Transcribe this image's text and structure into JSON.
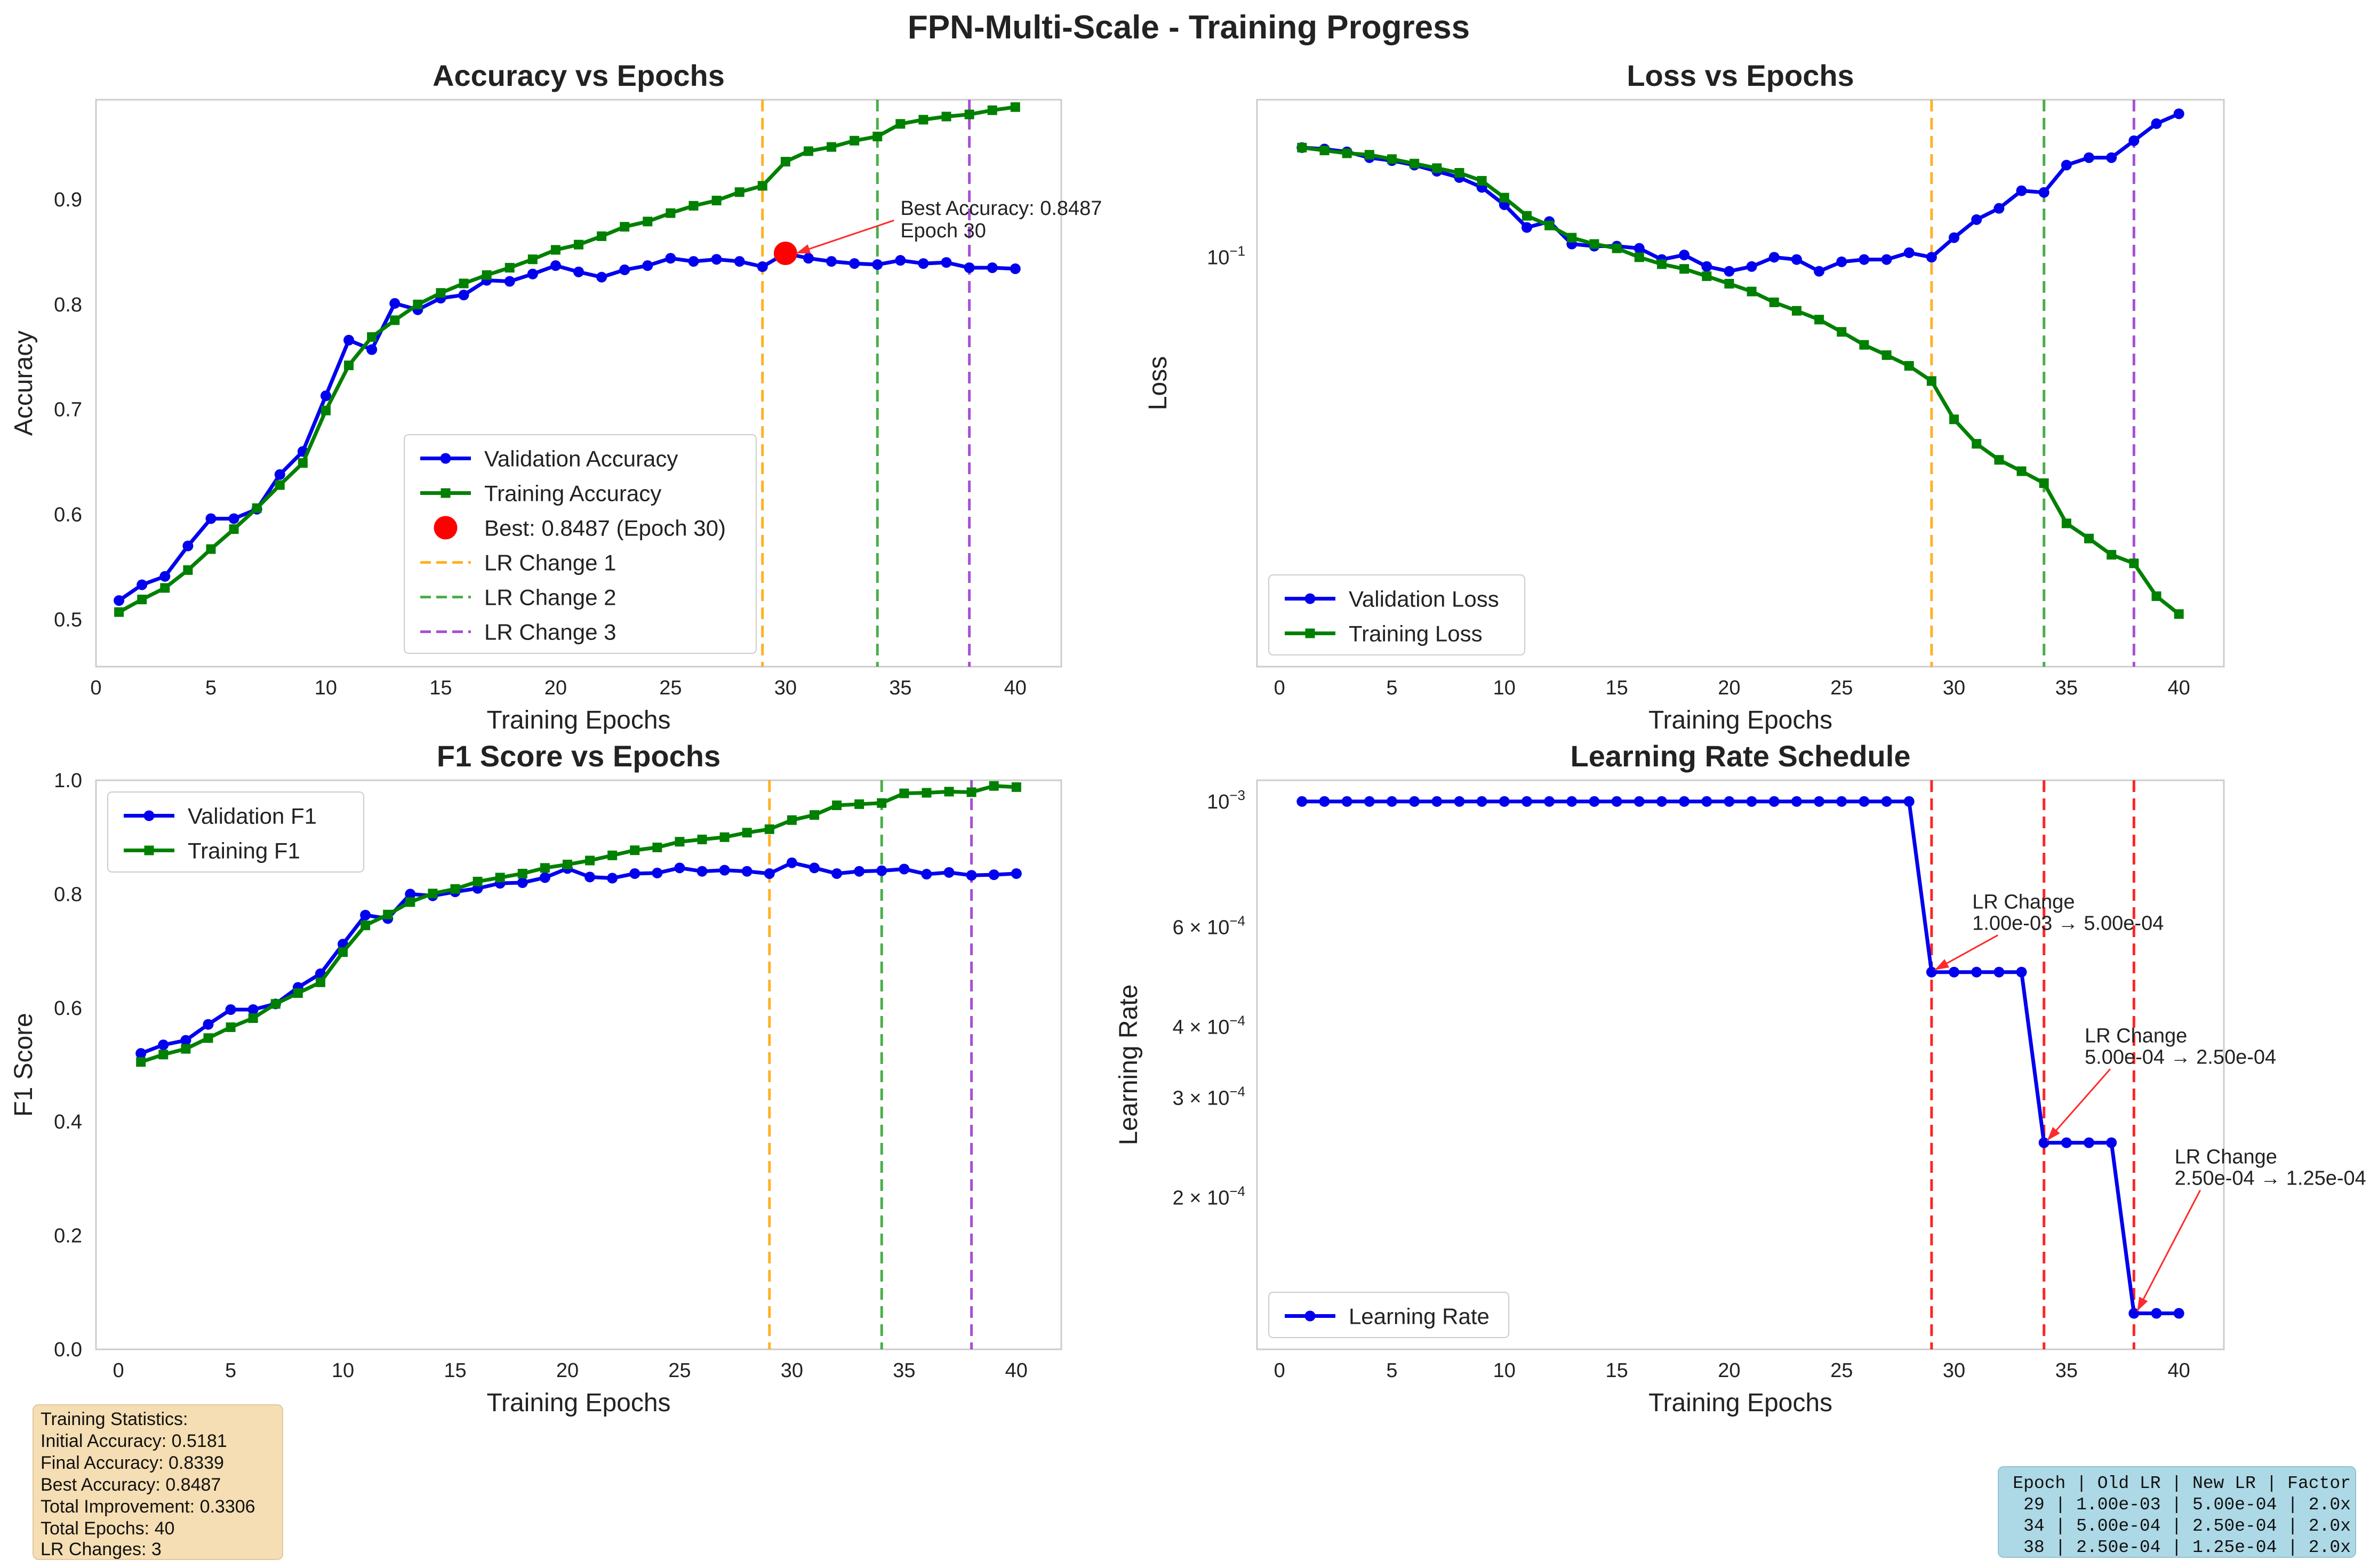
{
  "figure": {
    "title": "FPN-Multi-Scale - Training Progress",
    "colors": {
      "validation": "#0000ee",
      "training": "#008000",
      "best": "#ff0000",
      "lr_change_1": "#ffa500",
      "lr_change_2": "#2ca02c",
      "lr_change_3": "#9932cc",
      "lr_line": "#ff0000"
    }
  },
  "chart_data": [
    {
      "id": "accuracy",
      "type": "line",
      "title": "Accuracy vs Epochs",
      "xlabel": "Training Epochs",
      "ylabel": "Accuracy",
      "xlim": [
        0,
        42
      ],
      "ylim": [
        0.455,
        0.995
      ],
      "xticks": [
        0,
        5,
        10,
        15,
        20,
        25,
        30,
        35,
        40
      ],
      "yticks": [
        0.5,
        0.6,
        0.7,
        0.8,
        0.9
      ],
      "grid": true,
      "legend_position": "lower-center",
      "x": [
        1,
        2,
        3,
        4,
        5,
        6,
        7,
        8,
        9,
        10,
        11,
        12,
        13,
        14,
        15,
        16,
        17,
        18,
        19,
        20,
        21,
        22,
        23,
        24,
        25,
        26,
        27,
        28,
        29,
        30,
        31,
        32,
        33,
        34,
        35,
        36,
        37,
        38,
        39,
        40
      ],
      "series": [
        {
          "name": "Validation Accuracy",
          "marker": "circle",
          "color": "#0000ee",
          "values": [
            0.518,
            0.533,
            0.541,
            0.57,
            0.596,
            0.596,
            0.605,
            0.638,
            0.66,
            0.713,
            0.766,
            0.757,
            0.801,
            0.795,
            0.806,
            0.809,
            0.823,
            0.822,
            0.829,
            0.837,
            0.831,
            0.826,
            0.833,
            0.837,
            0.844,
            0.841,
            0.843,
            0.841,
            0.836,
            0.8487,
            0.844,
            0.841,
            0.839,
            0.838,
            0.842,
            0.839,
            0.84,
            0.835,
            0.835,
            0.834
          ]
        },
        {
          "name": "Training Accuracy",
          "marker": "square",
          "color": "#008000",
          "values": [
            0.507,
            0.519,
            0.53,
            0.547,
            0.567,
            0.586,
            0.606,
            0.628,
            0.649,
            0.699,
            0.742,
            0.769,
            0.785,
            0.8,
            0.811,
            0.82,
            0.828,
            0.835,
            0.843,
            0.852,
            0.857,
            0.865,
            0.874,
            0.879,
            0.887,
            0.894,
            0.899,
            0.907,
            0.913,
            0.936,
            0.946,
            0.95,
            0.956,
            0.96,
            0.972,
            0.976,
            0.979,
            0.981,
            0.985,
            0.988
          ]
        }
      ],
      "best_point": {
        "label": "Best: 0.8487 (Epoch 30)",
        "x": 30,
        "y": 0.8487
      },
      "vlines": [
        {
          "label": "LR Change 1",
          "x": 29,
          "color": "#ffa500"
        },
        {
          "label": "LR Change 2",
          "x": 34,
          "color": "#2ca02c"
        },
        {
          "label": "LR Change 3",
          "x": 38,
          "color": "#9932cc"
        }
      ],
      "annotation": {
        "line1": "Best Accuracy: 0.8487",
        "line2": "Epoch 30",
        "target_x": 30,
        "target_y": 0.8487,
        "text_x": 35,
        "text_y": 0.875
      }
    },
    {
      "id": "loss",
      "type": "line",
      "scale": "log",
      "title": "Loss vs Epochs",
      "xlabel": "Training Epochs",
      "ylabel": "Loss",
      "xlim": [
        -1,
        42
      ],
      "ylim": [
        0.0165,
        0.2
      ],
      "xticks": [
        0,
        5,
        10,
        15,
        20,
        25,
        30,
        35,
        40
      ],
      "ytick_labels": [
        {
          "value": 0.1,
          "base": "10",
          "exp": "−1"
        }
      ],
      "grid": true,
      "legend_position": "lower-left",
      "x": [
        1,
        2,
        3,
        4,
        5,
        6,
        7,
        8,
        9,
        10,
        11,
        12,
        13,
        14,
        15,
        16,
        17,
        18,
        19,
        20,
        21,
        22,
        23,
        24,
        25,
        26,
        27,
        28,
        29,
        30,
        31,
        32,
        33,
        34,
        35,
        36,
        37,
        38,
        39,
        40
      ],
      "series": [
        {
          "name": "Validation Loss",
          "marker": "circle",
          "color": "#0000ee",
          "values": [
            0.162,
            0.161,
            0.159,
            0.155,
            0.153,
            0.15,
            0.146,
            0.142,
            0.136,
            0.126,
            0.114,
            0.117,
            0.106,
            0.105,
            0.105,
            0.104,
            0.099,
            0.101,
            0.096,
            0.094,
            0.096,
            0.1,
            0.099,
            0.094,
            0.098,
            0.099,
            0.099,
            0.102,
            0.1,
            0.109,
            0.118,
            0.124,
            0.134,
            0.133,
            0.15,
            0.155,
            0.155,
            0.167,
            0.18,
            0.188
          ]
        },
        {
          "name": "Training Loss",
          "marker": "square",
          "color": "#008000",
          "values": [
            0.162,
            0.16,
            0.158,
            0.157,
            0.154,
            0.151,
            0.148,
            0.145,
            0.14,
            0.13,
            0.12,
            0.115,
            0.109,
            0.106,
            0.104,
            0.1,
            0.097,
            0.095,
            0.092,
            0.089,
            0.086,
            0.082,
            0.079,
            0.076,
            0.072,
            0.068,
            0.065,
            0.062,
            0.058,
            0.049,
            0.044,
            0.041,
            0.039,
            0.037,
            0.031,
            0.029,
            0.027,
            0.026,
            0.0225,
            0.0208
          ]
        }
      ],
      "vlines": [
        {
          "x": 29,
          "color": "#ffa500"
        },
        {
          "x": 34,
          "color": "#2ca02c"
        },
        {
          "x": 38,
          "color": "#9932cc"
        }
      ]
    },
    {
      "id": "f1",
      "type": "line",
      "title": "F1 Score vs Epochs",
      "xlabel": "Training Epochs",
      "ylabel": "F1 Score",
      "xlim": [
        -1,
        42
      ],
      "ylim": [
        0,
        1.0
      ],
      "xticks": [
        0,
        5,
        10,
        15,
        20,
        25,
        30,
        35,
        40
      ],
      "yticks": [
        0.0,
        0.2,
        0.4,
        0.6,
        0.8,
        1.0
      ],
      "grid": true,
      "legend_position": "upper-left",
      "x": [
        1,
        2,
        3,
        4,
        5,
        6,
        7,
        8,
        9,
        10,
        11,
        12,
        13,
        14,
        15,
        16,
        17,
        18,
        19,
        20,
        21,
        22,
        23,
        24,
        25,
        26,
        27,
        28,
        29,
        30,
        31,
        32,
        33,
        34,
        35,
        36,
        37,
        38,
        39,
        40
      ],
      "series": [
        {
          "name": "Validation F1",
          "marker": "circle",
          "color": "#0000ee",
          "values": [
            0.52,
            0.535,
            0.543,
            0.571,
            0.597,
            0.597,
            0.607,
            0.636,
            0.66,
            0.712,
            0.763,
            0.757,
            0.8,
            0.797,
            0.804,
            0.81,
            0.819,
            0.82,
            0.829,
            0.845,
            0.83,
            0.828,
            0.836,
            0.837,
            0.846,
            0.84,
            0.842,
            0.84,
            0.836,
            0.855,
            0.846,
            0.836,
            0.84,
            0.841,
            0.844,
            0.835,
            0.838,
            0.833,
            0.834,
            0.836
          ]
        },
        {
          "name": "Training F1",
          "marker": "square",
          "color": "#008000",
          "values": [
            0.505,
            0.518,
            0.528,
            0.547,
            0.566,
            0.582,
            0.607,
            0.626,
            0.645,
            0.698,
            0.745,
            0.764,
            0.786,
            0.801,
            0.809,
            0.822,
            0.829,
            0.836,
            0.846,
            0.852,
            0.859,
            0.868,
            0.877,
            0.882,
            0.892,
            0.896,
            0.9,
            0.908,
            0.914,
            0.93,
            0.939,
            0.956,
            0.958,
            0.96,
            0.977,
            0.978,
            0.98,
            0.979,
            0.99,
            0.988
          ]
        }
      ],
      "vlines": [
        {
          "x": 29,
          "color": "#ffa500"
        },
        {
          "x": 34,
          "color": "#2ca02c"
        },
        {
          "x": 38,
          "color": "#9932cc"
        }
      ]
    },
    {
      "id": "lr",
      "type": "line",
      "scale": "log",
      "title": "Learning Rate Schedule",
      "xlabel": "Training Epochs",
      "ylabel": "Learning Rate",
      "xlim": [
        -1,
        42
      ],
      "ylim": [
        0.000108,
        0.00109
      ],
      "xticks": [
        0,
        5,
        10,
        15,
        20,
        25,
        30,
        35,
        40
      ],
      "ytick_labels": [
        {
          "value": 0.001,
          "base": "10",
          "exp": "−3"
        },
        {
          "value": 0.0006,
          "base": "6 × 10",
          "exp": "−4"
        },
        {
          "value": 0.0004,
          "base": "4 × 10",
          "exp": "−4"
        },
        {
          "value": 0.0003,
          "base": "3 × 10",
          "exp": "−4"
        },
        {
          "value": 0.0002,
          "base": "2 × 10",
          "exp": "−4"
        }
      ],
      "grid": true,
      "legend_position": "lower-left",
      "x": [
        1,
        2,
        3,
        4,
        5,
        6,
        7,
        8,
        9,
        10,
        11,
        12,
        13,
        14,
        15,
        16,
        17,
        18,
        19,
        20,
        21,
        22,
        23,
        24,
        25,
        26,
        27,
        28,
        29,
        30,
        31,
        32,
        33,
        34,
        35,
        36,
        37,
        38,
        39,
        40
      ],
      "series": [
        {
          "name": "Learning Rate",
          "marker": "circle",
          "color": "#0000ee",
          "values": [
            0.001,
            0.001,
            0.001,
            0.001,
            0.001,
            0.001,
            0.001,
            0.001,
            0.001,
            0.001,
            0.001,
            0.001,
            0.001,
            0.001,
            0.001,
            0.001,
            0.001,
            0.001,
            0.001,
            0.001,
            0.001,
            0.001,
            0.001,
            0.001,
            0.001,
            0.001,
            0.001,
            0.001,
            0.0005,
            0.0005,
            0.0005,
            0.0005,
            0.0005,
            0.00025,
            0.00025,
            0.00025,
            0.00025,
            0.000125,
            0.000125,
            0.000125
          ]
        }
      ],
      "spans": [
        {
          "x0": 1,
          "x1": 29,
          "color": "#ccccff"
        },
        {
          "x0": 29,
          "x1": 34,
          "color": "#fdeacb"
        },
        {
          "x0": 34,
          "x1": 38,
          "color": "#cfe6cf"
        }
      ],
      "vlines": [
        {
          "x": 29,
          "color": "#ff0000"
        },
        {
          "x": 34,
          "color": "#ff0000"
        },
        {
          "x": 38,
          "color": "#ff0000"
        }
      ],
      "annotations": [
        {
          "line1": "LR Change",
          "line2": "1.00e-03 → 5.00e-04",
          "target_x": 29,
          "target_y": 0.0005,
          "text_x": 31,
          "text_y": 0.00062
        },
        {
          "line1": "LR Change",
          "line2": "5.00e-04 → 2.50e-04",
          "target_x": 34,
          "target_y": 0.00025,
          "text_x": 36,
          "text_y": 0.00036
        },
        {
          "line1": "LR Change",
          "line2": "2.50e-04 → 1.25e-04",
          "target_x": 38,
          "target_y": 0.000125,
          "text_x": 40,
          "text_y": 0.00022
        }
      ]
    }
  ],
  "stats_box": {
    "title": "Training Statistics:",
    "lines": [
      "Initial Accuracy: 0.5181",
      "Final Accuracy: 0.8339",
      "Best Accuracy: 0.8487",
      "Total Improvement: 0.3306",
      "Total Epochs: 40",
      "LR Changes: 3"
    ],
    "background": "#f5deb3"
  },
  "lr_table": {
    "header": "Epoch | Old LR | New LR | Factor",
    "rows": [
      " 29 | 1.00e-03 | 5.00e-04 | 2.0x",
      " 34 | 5.00e-04 | 2.50e-04 | 2.0x",
      " 38 | 2.50e-04 | 1.25e-04 | 2.0x"
    ],
    "background": "#add8e6"
  }
}
